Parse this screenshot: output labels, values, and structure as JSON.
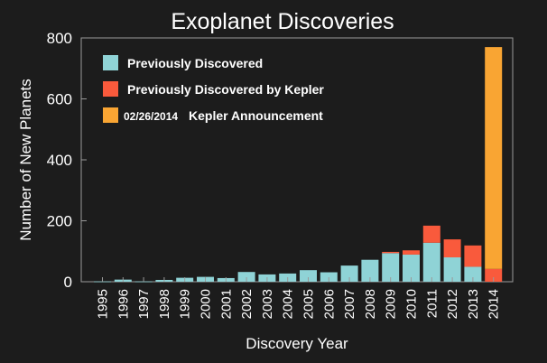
{
  "chart_data": {
    "type": "bar",
    "stacked": true,
    "title": "Exoplanet Discoveries",
    "xlabel": "Discovery Year",
    "ylabel": "Number of New Planets",
    "ylim": [
      0,
      800
    ],
    "yticks": [
      0,
      200,
      400,
      600,
      800
    ],
    "categories": [
      "1995",
      "1996",
      "1997",
      "1998",
      "1999",
      "2000",
      "2001",
      "2002",
      "2003",
      "2004",
      "2005",
      "2006",
      "2007",
      "2008",
      "2009",
      "2010",
      "2011",
      "2012",
      "2013",
      "2014"
    ],
    "series": [
      {
        "name": "Previously Discovered",
        "color": "#8fd3d6",
        "values": [
          1,
          7,
          1,
          6,
          13,
          16,
          12,
          32,
          24,
          27,
          38,
          31,
          53,
          72,
          94,
          89,
          128,
          80,
          49,
          0
        ]
      },
      {
        "name": "Previously Discovered by Kepler",
        "color": "#f95a3c",
        "values": [
          0,
          0,
          0,
          0,
          0,
          0,
          0,
          0,
          0,
          0,
          0,
          0,
          0,
          0,
          4,
          14,
          56,
          59,
          70,
          42
        ]
      },
      {
        "name": "Kepler Announcement",
        "legend_prefix": "02/26/2014",
        "color": "#f9a533",
        "values": [
          0,
          0,
          0,
          0,
          0,
          0,
          0,
          0,
          0,
          0,
          0,
          0,
          0,
          0,
          0,
          0,
          0,
          0,
          0,
          728
        ]
      }
    ],
    "grid": false,
    "legend_position": "top-left"
  }
}
